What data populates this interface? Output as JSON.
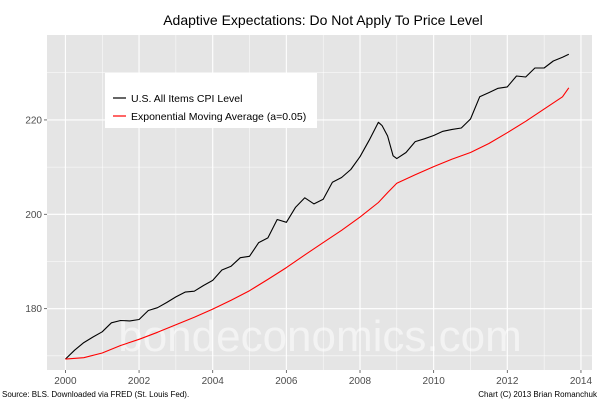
{
  "chart_data": {
    "type": "line",
    "title": "Adaptive Expectations: Do Not Apply To Price Level",
    "xlabel": "",
    "ylabel": "",
    "xlim": [
      1999.5,
      2014.3
    ],
    "ylim": [
      167,
      238
    ],
    "x_ticks": [
      2000,
      2002,
      2004,
      2006,
      2008,
      2010,
      2012,
      2014
    ],
    "y_ticks": [
      180,
      200,
      220
    ],
    "grid": true,
    "legend_position": "top-left inside",
    "series": [
      {
        "name": "U.S. All Items CPI Level",
        "color": "#000000",
        "x": [
          2000.0,
          2000.25,
          2000.5,
          2000.75,
          2001.0,
          2001.25,
          2001.5,
          2001.75,
          2002.0,
          2002.25,
          2002.5,
          2002.75,
          2003.0,
          2003.25,
          2003.5,
          2003.75,
          2004.0,
          2004.25,
          2004.5,
          2004.75,
          2005.0,
          2005.25,
          2005.5,
          2005.75,
          2006.0,
          2006.25,
          2006.5,
          2006.75,
          2007.0,
          2007.25,
          2007.5,
          2007.75,
          2008.0,
          2008.25,
          2008.5,
          2008.6,
          2008.75,
          2008.9,
          2009.0,
          2009.25,
          2009.5,
          2009.75,
          2010.0,
          2010.25,
          2010.5,
          2010.75,
          2011.0,
          2011.25,
          2011.5,
          2011.75,
          2012.0,
          2012.25,
          2012.5,
          2012.75,
          2013.0,
          2013.25,
          2013.5,
          2013.67
        ],
        "values": [
          169.3,
          171.2,
          172.8,
          174.0,
          175.1,
          177.0,
          177.5,
          177.4,
          177.7,
          179.6,
          180.2,
          181.3,
          182.5,
          183.5,
          183.7,
          184.9,
          186.0,
          188.2,
          189.0,
          190.8,
          191.1,
          194.0,
          195.0,
          198.9,
          198.3,
          201.5,
          203.5,
          202.2,
          203.2,
          206.8,
          207.8,
          209.5,
          212.2,
          215.7,
          219.5,
          218.8,
          216.6,
          212.4,
          211.8,
          213.1,
          215.4,
          216.0,
          216.7,
          217.6,
          218.0,
          218.3,
          220.2,
          224.9,
          225.8,
          226.7,
          227.0,
          229.3,
          229.1,
          231.0,
          231.0,
          232.5,
          233.3,
          233.9
        ]
      },
      {
        "name": "Exponential Moving Average (a=0.05)",
        "color": "#ff0000",
        "x": [
          2000.0,
          2000.5,
          2001.0,
          2001.5,
          2002.0,
          2002.5,
          2003.0,
          2003.5,
          2004.0,
          2004.5,
          2005.0,
          2005.5,
          2006.0,
          2006.5,
          2007.0,
          2007.5,
          2008.0,
          2008.5,
          2008.75,
          2009.0,
          2009.5,
          2010.0,
          2010.5,
          2011.0,
          2011.5,
          2012.0,
          2012.5,
          2013.0,
          2013.5,
          2013.67
        ],
        "values": [
          169.3,
          169.6,
          170.6,
          172.2,
          173.5,
          175.0,
          176.6,
          178.2,
          179.9,
          181.8,
          183.8,
          186.2,
          188.7,
          191.4,
          194.0,
          196.6,
          199.4,
          202.5,
          204.6,
          206.6,
          208.4,
          210.1,
          211.7,
          213.1,
          215.0,
          217.3,
          219.7,
          222.3,
          224.9,
          226.8
        ]
      }
    ],
    "watermark": "bondeconomics.com",
    "source_note": "Source: BLS. Downloaded via FRED (St. Louis Fed).",
    "credit_note": "Chart (C) 2013 Brian Romanchuk"
  },
  "colors": {
    "panel_background": "#e5e5e5",
    "gridline": "#ffffff",
    "legend_background": "#ffffff",
    "tick_text": "#4d4d4d"
  }
}
